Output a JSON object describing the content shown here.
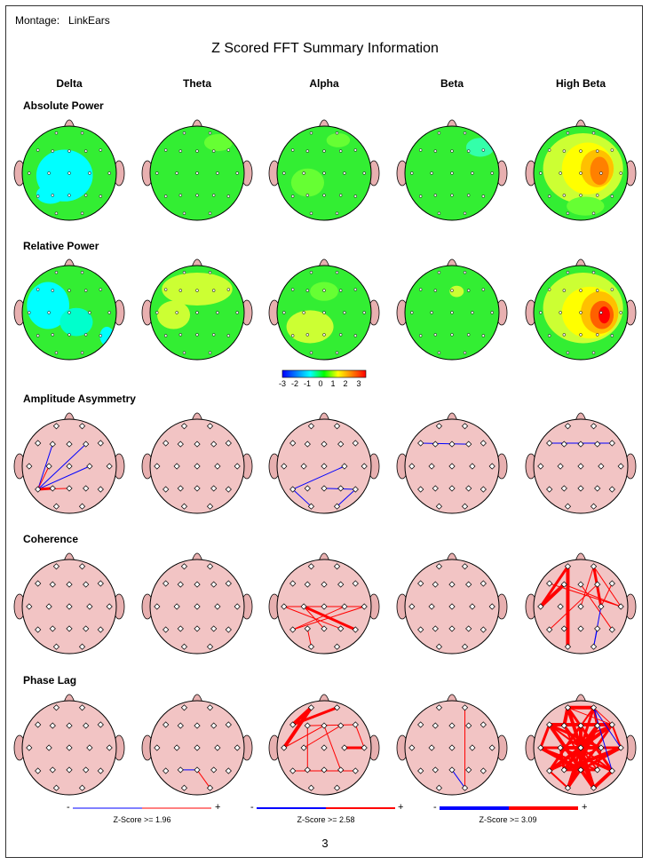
{
  "header": {
    "montage_label": "Montage:",
    "montage_value": "LinkEars",
    "title": "Z Scored FFT Summary Information"
  },
  "bands": [
    "Delta",
    "Theta",
    "Alpha",
    "Beta",
    "High Beta"
  ],
  "rows": [
    "Absolute Power",
    "Relative Power",
    "Amplitude Asymmetry",
    "Coherence",
    "Phase Lag"
  ],
  "colorbar": {
    "ticks": [
      "-3",
      "-2",
      "-1",
      "0",
      "1",
      "2",
      "3"
    ],
    "colors": [
      "#0000ff",
      "#0080ff",
      "#00ffff",
      "#00ff00",
      "#ffff00",
      "#ff8000",
      "#ff0000"
    ]
  },
  "legends": [
    {
      "caption": "Z-Score >= 1.96",
      "minus": "-",
      "plus": "+"
    },
    {
      "caption": "Z-Score >= 2.58",
      "minus": "-",
      "plus": "+"
    },
    {
      "caption": "Z-Score >= 3.09",
      "minus": "-",
      "plus": "+"
    }
  ],
  "colors": {
    "head_fill": "#f2c4c4",
    "ear_fill": "#e8b0b0",
    "positive_line": "#ff0000",
    "negative_line": "#0000ff",
    "green": "#33ee33"
  },
  "page_number": "3"
}
